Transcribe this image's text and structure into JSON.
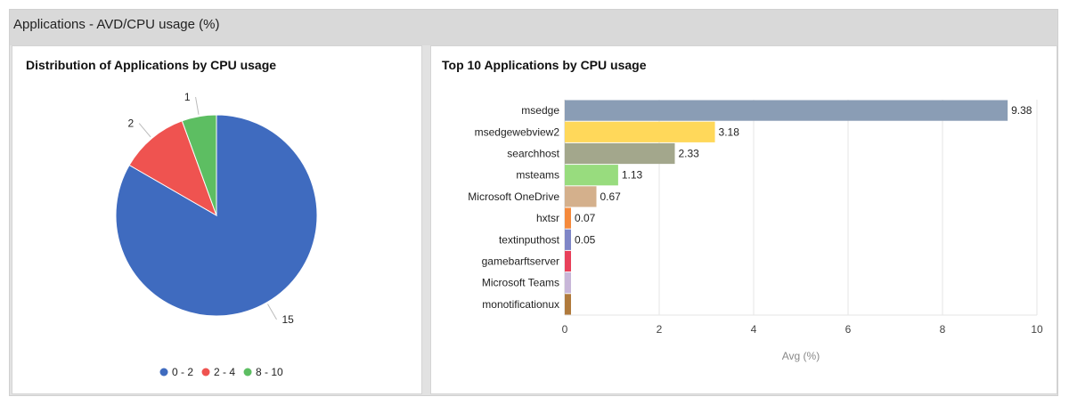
{
  "header": {
    "title": "Applications - AVD/CPU usage (%)"
  },
  "pie_panel": {
    "title": "Distribution of Applications by CPU usage"
  },
  "bar_panel": {
    "title": "Top 10 Applications by CPU usage"
  },
  "chart_data": [
    {
      "type": "pie",
      "title": "Distribution of Applications by CPU usage",
      "slices": [
        {
          "label": "0 - 2",
          "value": 15,
          "color": "#3f6bbf"
        },
        {
          "label": "2 - 4",
          "value": 2,
          "color": "#ef5350"
        },
        {
          "label": "8 - 10",
          "value": 1,
          "color": "#5dbe62"
        }
      ],
      "legend": "bottom"
    },
    {
      "type": "bar",
      "orientation": "horizontal",
      "title": "Top 10 Applications by CPU usage",
      "xlabel": "Avg (%)",
      "xlim": [
        0,
        10
      ],
      "xticks": [
        0,
        2,
        4,
        6,
        8,
        10
      ],
      "grid": true,
      "bars": [
        {
          "category": "msedge",
          "value": 9.38,
          "label": "9.38",
          "color": "#8a9db5"
        },
        {
          "category": "msedgewebview2",
          "value": 3.18,
          "label": "3.18",
          "color": "#ffd85a"
        },
        {
          "category": "searchhost",
          "value": 2.33,
          "label": "2.33",
          "color": "#a3a78c"
        },
        {
          "category": "msteams",
          "value": 1.13,
          "label": "1.13",
          "color": "#98dc7e"
        },
        {
          "category": "Microsoft OneDrive",
          "value": 0.67,
          "label": "0.67",
          "color": "#d4b08c"
        },
        {
          "category": "hxtsr",
          "value": 0.07,
          "label": "0.07",
          "color": "#f58a3c"
        },
        {
          "category": "textinputhost",
          "value": 0.05,
          "label": "0.05",
          "color": "#7f86c7"
        },
        {
          "category": "gamebarftserver",
          "value": 0.02,
          "label": "",
          "color": "#e8405a"
        },
        {
          "category": "Microsoft Teams",
          "value": 0.02,
          "label": "",
          "color": "#c8b6d8"
        },
        {
          "category": "monotificationux",
          "value": 0.02,
          "label": "",
          "color": "#b07a3c"
        }
      ]
    }
  ]
}
